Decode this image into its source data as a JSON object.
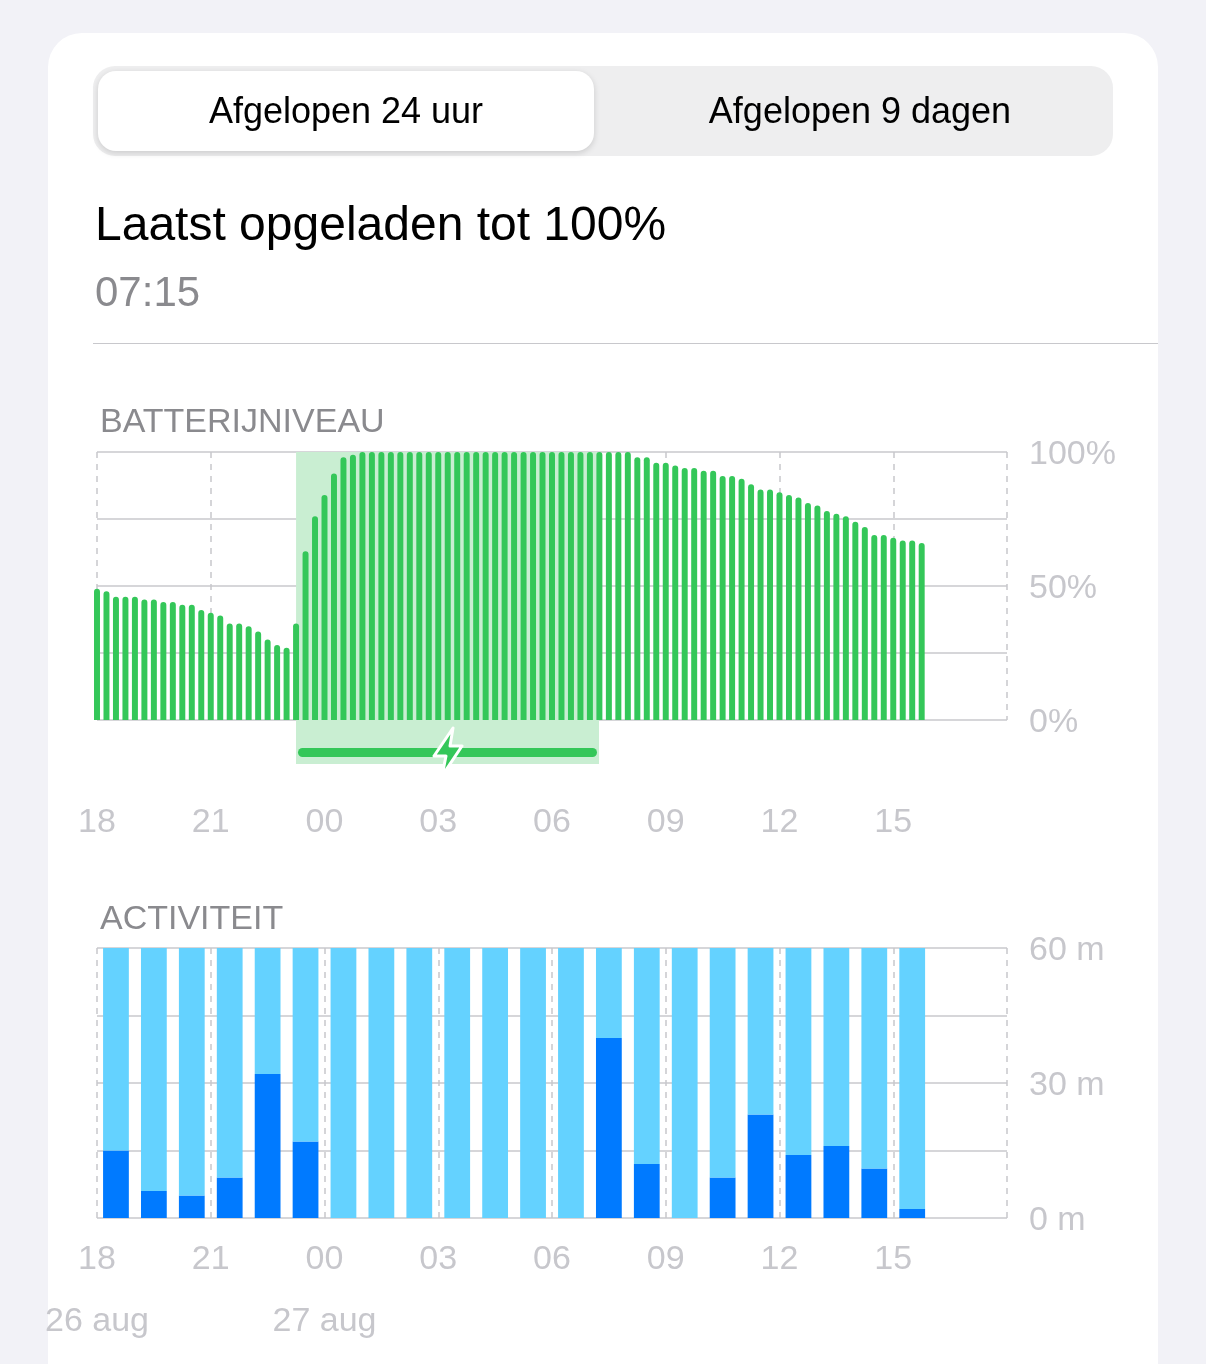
{
  "chart_data": [
    {
      "type": "other",
      "title": "Laatst opgeladen tot 100%",
      "subtitle": "07:15",
      "annotations": [
        "Afgelopen 24 uur",
        "Afgelopen 9 dagen"
      ]
    },
    {
      "type": "bar",
      "title": "BATTERIJNIVEAU",
      "color": "#34c759",
      "x": [
        "--08-26T18:00",
        "--08-26T18:15",
        "--08-26T18:30",
        "--08-26T18:45",
        "--08-26T19:00",
        "--08-26T19:15",
        "--08-26T19:30",
        "--08-26T19:45",
        "--08-26T20:00",
        "--08-26T20:15",
        "--08-26T20:30",
        "--08-26T20:45",
        "--08-26T21:00",
        "--08-26T21:15",
        "--08-26T21:30",
        "--08-26T21:45",
        "--08-26T22:00",
        "--08-26T22:15",
        "--08-26T22:30",
        "--08-26T22:45",
        "--08-26T23:00",
        "--08-26T23:15",
        "--08-26T23:30",
        "--08-26T23:45",
        "--08-27T00:00",
        "--08-27T00:15",
        "--08-27T00:30",
        "--08-27T00:45",
        "--08-27T01:00",
        "--08-27T01:15",
        "--08-27T01:30",
        "--08-27T01:45",
        "--08-27T02:00",
        "--08-27T02:15",
        "--08-27T02:30",
        "--08-27T02:45",
        "--08-27T03:00",
        "--08-27T03:15",
        "--08-27T03:30",
        "--08-27T03:45",
        "--08-27T04:00",
        "--08-27T04:15",
        "--08-27T04:30",
        "--08-27T04:45",
        "--08-27T05:00",
        "--08-27T05:15",
        "--08-27T05:30",
        "--08-27T05:45",
        "--08-27T06:00",
        "--08-27T06:15",
        "--08-27T06:30",
        "--08-27T06:45",
        "--08-27T07:00",
        "--08-27T07:15",
        "--08-27T07:30",
        "--08-27T07:45",
        "--08-27T08:00",
        "--08-27T08:15",
        "--08-27T08:30",
        "--08-27T08:45",
        "--08-27T09:00",
        "--08-27T09:15",
        "--08-27T09:30",
        "--08-27T09:45",
        "--08-27T10:00",
        "--08-27T10:15",
        "--08-27T10:30",
        "--08-27T10:45",
        "--08-27T11:00",
        "--08-27T11:15",
        "--08-27T11:30",
        "--08-27T11:45",
        "--08-27T12:00",
        "--08-27T12:15",
        "--08-27T12:30",
        "--08-27T12:45",
        "--08-27T13:00",
        "--08-27T13:15",
        "--08-27T13:30",
        "--08-27T13:45",
        "--08-27T14:00",
        "--08-27T14:15",
        "--08-27T14:30",
        "--08-27T14:45",
        "--08-27T15:00",
        "--08-27T15:15",
        "--08-27T15:30",
        "--08-27T15:45"
      ],
      "values": [
        49,
        48,
        46,
        46,
        46,
        45,
        45,
        44,
        44,
        43,
        43,
        41,
        40,
        39,
        36,
        36,
        35,
        33,
        30,
        28,
        27,
        36,
        63,
        76,
        84,
        92,
        98,
        99,
        100,
        100,
        100,
        100,
        100,
        100,
        100,
        100,
        100,
        100,
        100,
        100,
        100,
        100,
        100,
        100,
        100,
        100,
        100,
        100,
        100,
        100,
        100,
        100,
        100,
        100,
        100,
        100,
        100,
        98,
        98,
        96,
        96,
        95,
        94,
        94,
        93,
        93,
        91,
        91,
        90,
        88,
        86,
        86,
        85,
        84,
        83,
        81,
        80,
        78,
        77,
        76,
        74,
        72,
        69,
        69,
        68,
        67,
        67,
        66
      ],
      "xlim": [
        "--08-26T18:00",
        "--08-27T18:00"
      ],
      "xticks": [
        {
          "value": "--08-26T18:00",
          "label": "18"
        },
        {
          "value": "--08-26T21:00",
          "label": "21"
        },
        {
          "value": "--08-27T00:00",
          "label": "00"
        },
        {
          "value": "--08-27T03:00",
          "label": "03"
        },
        {
          "value": "--08-27T06:00",
          "label": "06"
        },
        {
          "value": "--08-27T09:00",
          "label": "09"
        },
        {
          "value": "--08-27T12:00",
          "label": "12"
        },
        {
          "value": "--08-27T15:00",
          "label": "15"
        },
        {
          "value": "--08-27T18:00",
          "label": null
        }
      ],
      "ylim": [
        0,
        100
      ],
      "yticks": [
        {
          "value": 0,
          "label": "0%"
        },
        {
          "value": 25,
          "label": null
        },
        {
          "value": 50,
          "label": "50%"
        },
        {
          "value": 75,
          "label": null
        },
        {
          "value": 100,
          "label": "100%"
        }
      ],
      "grid": true,
      "bands": [
        {
          "axis": "x",
          "from": "--08-26T23:15",
          "to": "--08-27T07:15",
          "color": "#c9eed2"
        }
      ]
    },
    {
      "type": "bar",
      "title": "ACTIVITEIT",
      "stacked": true,
      "x": [
        "--08-26T18:30",
        "--08-26T19:30",
        "--08-26T20:30",
        "--08-26T21:30",
        "--08-26T22:30",
        "--08-26T23:30",
        "--08-27T00:30",
        "--08-27T01:30",
        "--08-27T02:30",
        "--08-27T03:30",
        "--08-27T04:30",
        "--08-27T05:30",
        "--08-27T06:30",
        "--08-27T07:30",
        "--08-27T08:30",
        "--08-27T09:30",
        "--08-27T10:30",
        "--08-27T11:30",
        "--08-27T12:30",
        "--08-27T13:30",
        "--08-27T14:30",
        "--08-27T15:30"
      ],
      "series": [
        {
          "color": "#007aff",
          "values": [
            15,
            6,
            5,
            9,
            32,
            17,
            0,
            0,
            0,
            0,
            0,
            0,
            0,
            40,
            12,
            0,
            9,
            23,
            14,
            16,
            11,
            2
          ]
        },
        {
          "color": "#64d2ff",
          "values": [
            45,
            54,
            55,
            51,
            28,
            43,
            60,
            60,
            60,
            60,
            60,
            60,
            60,
            20,
            48,
            60,
            51,
            37,
            46,
            44,
            49,
            58
          ]
        }
      ],
      "xlim": [
        "--08-26T18:00",
        "--08-27T18:00"
      ],
      "xticks": [
        {
          "value": "--08-26T18:00",
          "label": "18\n26 aug"
        },
        {
          "value": "--08-26T21:00",
          "label": "21"
        },
        {
          "value": "--08-27T00:00",
          "label": "00\n27 aug"
        },
        {
          "value": "--08-27T03:00",
          "label": "03"
        },
        {
          "value": "--08-27T06:00",
          "label": "06"
        },
        {
          "value": "--08-27T09:00",
          "label": "09"
        },
        {
          "value": "--08-27T12:00",
          "label": "12"
        },
        {
          "value": "--08-27T15:00",
          "label": "15"
        },
        {
          "value": "--08-27T18:00",
          "label": null
        }
      ],
      "ylim": [
        0,
        60
      ],
      "yticks": [
        {
          "value": 0,
          "label": "0 m"
        },
        {
          "value": 15,
          "label": null
        },
        {
          "value": 30,
          "label": "30 m"
        },
        {
          "value": 45,
          "label": null
        },
        {
          "value": 60,
          "label": "60 m"
        }
      ],
      "grid": true
    }
  ]
}
